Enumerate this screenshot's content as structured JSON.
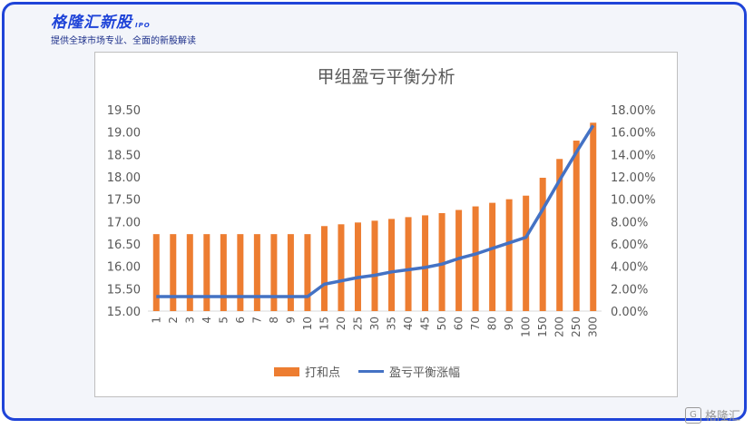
{
  "brand": {
    "name": "格隆汇新股",
    "sub": "IPO",
    "tagline": "提供全球市场专业、全面的新股解读"
  },
  "watermark": {
    "text": "格隆汇",
    "icon": "G-logo-icon"
  },
  "colors": {
    "bar": "#ed7d31",
    "line": "#4472c4",
    "frame": "#1f44d8"
  },
  "chart_data": {
    "type": "bar",
    "title": "甲组盈亏平衡分析",
    "categories": [
      "1",
      "2",
      "3",
      "4",
      "5",
      "6",
      "7",
      "8",
      "9",
      "10",
      "15",
      "20",
      "25",
      "30",
      "35",
      "40",
      "45",
      "50",
      "60",
      "70",
      "80",
      "90",
      "100",
      "150",
      "200",
      "250",
      "300"
    ],
    "series": [
      {
        "name": "打和点",
        "type": "bar",
        "axis": "left",
        "values": [
          16.72,
          16.72,
          16.72,
          16.72,
          16.72,
          16.72,
          16.72,
          16.72,
          16.72,
          16.72,
          16.9,
          16.94,
          16.98,
          17.02,
          17.06,
          17.1,
          17.14,
          17.19,
          17.26,
          17.34,
          17.42,
          17.5,
          17.58,
          17.98,
          18.4,
          18.81,
          19.21
        ]
      },
      {
        "name": "盈亏平衡涨幅",
        "type": "line",
        "axis": "right",
        "values": [
          1.3,
          1.3,
          1.3,
          1.3,
          1.3,
          1.3,
          1.3,
          1.3,
          1.3,
          1.3,
          2.4,
          2.7,
          3.0,
          3.2,
          3.5,
          3.7,
          3.9,
          4.2,
          4.7,
          5.1,
          5.6,
          6.1,
          6.6,
          9.1,
          11.7,
          14.2,
          16.6
        ]
      }
    ],
    "y_left": {
      "min": 15.0,
      "max": 19.5,
      "ticks": [
        "15.00",
        "15.50",
        "16.00",
        "16.50",
        "17.00",
        "17.50",
        "18.00",
        "18.50",
        "19.00",
        "19.50"
      ]
    },
    "y_right": {
      "min": 0,
      "max": 18,
      "ticks": [
        "0.00%",
        "2.00%",
        "4.00%",
        "6.00%",
        "8.00%",
        "10.00%",
        "12.00%",
        "14.00%",
        "16.00%",
        "18.00%"
      ]
    },
    "legend_position": "bottom",
    "grid": false
  }
}
